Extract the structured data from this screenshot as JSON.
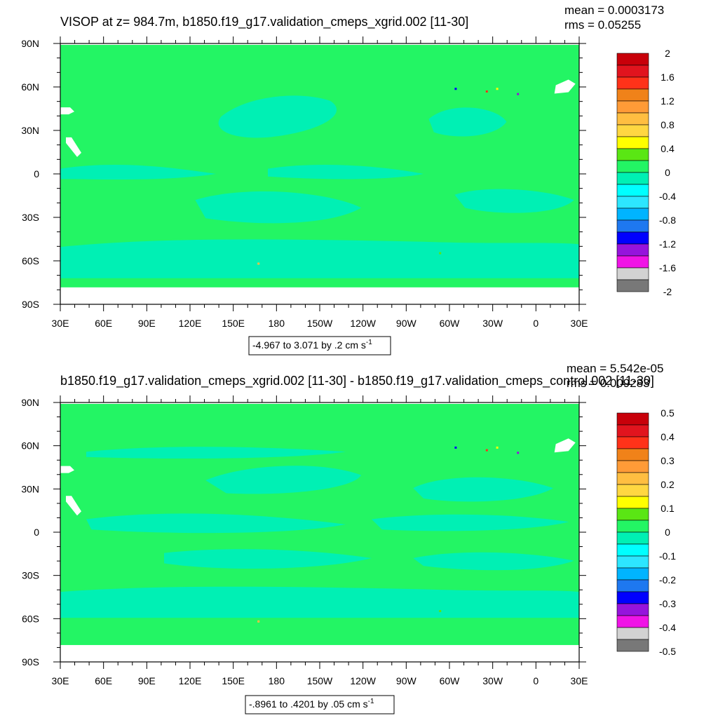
{
  "chart_data": [
    {
      "type": "heatmap",
      "title": "VISOP at z= 984.7m, b1850.f19_g17.validation_cmeps_xgrid.002 [11-30]",
      "stats": {
        "mean": "mean = 0.0003173",
        "rms": "rms = 0.05255"
      },
      "x_ticks": [
        "30E",
        "60E",
        "90E",
        "120E",
        "150E",
        "180",
        "150W",
        "120W",
        "90W",
        "60W",
        "30W",
        "0",
        "30E"
      ],
      "y_ticks": [
        "90N",
        "60N",
        "30N",
        "0",
        "30S",
        "60S",
        "90S"
      ],
      "contour_info": "-4.967 to 3.071 by .2 cm s",
      "contour_unit_exp": "-1",
      "colorbar_labels": [
        "2",
        "1.6",
        "1.2",
        "0.8",
        "0.4",
        "0",
        "-0.4",
        "-0.8",
        "-1.2",
        "-1.6",
        "-2"
      ],
      "colorbar_colors": [
        "#c8000a",
        "#e1141e",
        "#ff3219",
        "#f08219",
        "#ff9b37",
        "#ffbe41",
        "#ffd741",
        "#ffff00",
        "#5ae614",
        "#23f564",
        "#00f0b4",
        "#00ffff",
        "#2de6ff",
        "#00b4ff",
        "#1e78f0",
        "#0000ff",
        "#9614dc",
        "#f014e6",
        "#d2d2d2",
        "#787878"
      ],
      "field_colors": {
        "background": "#23f564",
        "negative": "#00f0b4",
        "land_mask": "#ffffff"
      }
    },
    {
      "type": "heatmap",
      "title": "b1850.f19_g17.validation_cmeps_xgrid.002 [11-30] - b1850.f19_g17.validation_cmeps_control.002 [11-30]",
      "stats": {
        "mean": "mean = 5.542e-05",
        "rms": "rms = 0.009283"
      },
      "x_ticks": [
        "30E",
        "60E",
        "90E",
        "120E",
        "150E",
        "180",
        "150W",
        "120W",
        "90W",
        "60W",
        "30W",
        "0",
        "30E"
      ],
      "y_ticks": [
        "90N",
        "60N",
        "30N",
        "0",
        "30S",
        "60S",
        "90S"
      ],
      "contour_info": "-.8961 to .4201 by .05 cm s",
      "contour_unit_exp": "-1",
      "colorbar_labels": [
        "0.5",
        "0.4",
        "0.3",
        "0.2",
        "0.1",
        "0",
        "-0.1",
        "-0.2",
        "-0.3",
        "-0.4",
        "-0.5"
      ],
      "colorbar_colors": [
        "#c8000a",
        "#e1141e",
        "#ff3219",
        "#f08219",
        "#ff9b37",
        "#ffbe41",
        "#ffd741",
        "#ffff00",
        "#5ae614",
        "#23f564",
        "#00f0b4",
        "#00ffff",
        "#2de6ff",
        "#00b4ff",
        "#1e78f0",
        "#0000ff",
        "#9614dc",
        "#f014e6",
        "#d2d2d2",
        "#787878"
      ],
      "field_colors": {
        "background": "#23f564",
        "negative": "#00f0b4",
        "land_mask": "#ffffff"
      }
    }
  ]
}
